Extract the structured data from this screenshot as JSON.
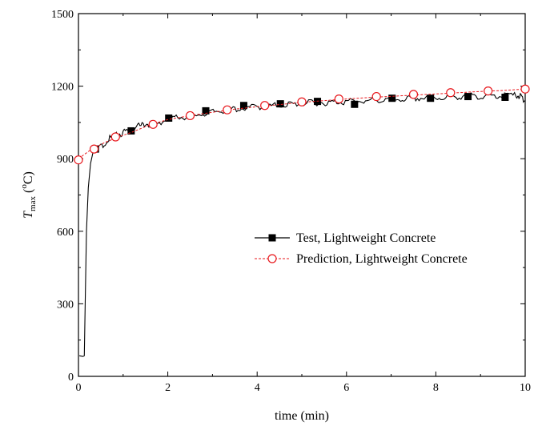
{
  "chart_data": {
    "type": "line",
    "title": "",
    "xlabel": "time (min)",
    "ylabel": {
      "main": "T",
      "subscript": "max",
      "unit_open": " (",
      "unit_sup": "o",
      "unit_close": "C)"
    },
    "xlim": [
      0,
      10
    ],
    "ylim": [
      0,
      1500
    ],
    "xticks": [
      0,
      2,
      4,
      6,
      8,
      10
    ],
    "yticks": [
      0,
      300,
      600,
      900,
      1200,
      1500
    ],
    "grid": false,
    "legend_position": "center-right",
    "series": [
      {
        "name": "Test, Lightweight Concrete",
        "color": "#000000",
        "line_style": "solid",
        "marker": "filled-square",
        "curve": [
          [
            0.02,
            85
          ],
          [
            0.1,
            82
          ],
          [
            0.13,
            85
          ],
          [
            0.15,
            300
          ],
          [
            0.18,
            600
          ],
          [
            0.22,
            780
          ],
          [
            0.27,
            880
          ],
          [
            0.33,
            930
          ],
          [
            0.5,
            950
          ],
          [
            0.7,
            985
          ],
          [
            0.9,
            1000
          ],
          [
            1.1,
            1015
          ],
          [
            1.3,
            1030
          ],
          [
            1.5,
            1045
          ],
          [
            1.7,
            1045
          ],
          [
            2.0,
            1062
          ],
          [
            2.3,
            1072
          ],
          [
            2.6,
            1080
          ],
          [
            2.9,
            1090
          ],
          [
            3.2,
            1098
          ],
          [
            3.5,
            1105
          ],
          [
            3.8,
            1112
          ],
          [
            4.1,
            1116
          ],
          [
            4.4,
            1120
          ],
          [
            4.7,
            1125
          ],
          [
            5.0,
            1128
          ],
          [
            5.3,
            1132
          ],
          [
            5.6,
            1133
          ],
          [
            5.9,
            1135
          ],
          [
            6.2,
            1138
          ],
          [
            6.5,
            1140
          ],
          [
            6.8,
            1143
          ],
          [
            7.1,
            1145
          ],
          [
            7.4,
            1148
          ],
          [
            7.7,
            1150
          ],
          [
            8.0,
            1152
          ],
          [
            8.3,
            1155
          ],
          [
            8.6,
            1158
          ],
          [
            8.9,
            1160
          ],
          [
            9.2,
            1160
          ],
          [
            9.5,
            1162
          ],
          [
            9.8,
            1163
          ],
          [
            9.92,
            1155
          ],
          [
            10.0,
            1140
          ]
        ],
        "markers": [
          [
            0.38,
            940
          ],
          [
            1.18,
            1015
          ],
          [
            2.02,
            1068
          ],
          [
            2.85,
            1098
          ],
          [
            3.7,
            1120
          ],
          [
            4.52,
            1127
          ],
          [
            5.35,
            1137
          ],
          [
            6.18,
            1125
          ],
          [
            7.02,
            1150
          ],
          [
            7.88,
            1150
          ],
          [
            8.72,
            1157
          ],
          [
            9.55,
            1154
          ]
        ]
      },
      {
        "name": "Prediction, Lightweight Concrete",
        "color": "#e8191e",
        "line_style": "dashed",
        "marker": "open-circle",
        "curve": [
          [
            0.0,
            900
          ],
          [
            0.3,
            940
          ],
          [
            0.6,
            968
          ],
          [
            0.9,
            990
          ],
          [
            1.2,
            1010
          ],
          [
            1.6,
            1040
          ],
          [
            2.0,
            1062
          ],
          [
            2.5,
            1078
          ],
          [
            3.0,
            1092
          ],
          [
            3.5,
            1105
          ],
          [
            4.0,
            1115
          ],
          [
            4.5,
            1124
          ],
          [
            5.0,
            1133
          ],
          [
            5.5,
            1140
          ],
          [
            6.0,
            1147
          ],
          [
            6.5,
            1153
          ],
          [
            7.0,
            1158
          ],
          [
            7.5,
            1163
          ],
          [
            8.0,
            1168
          ],
          [
            8.5,
            1173
          ],
          [
            9.0,
            1178
          ],
          [
            9.5,
            1182
          ],
          [
            10.0,
            1188
          ]
        ],
        "markers": [
          [
            0.0,
            895
          ],
          [
            0.35,
            940
          ],
          [
            0.83,
            990
          ],
          [
            1.67,
            1042
          ],
          [
            2.5,
            1078
          ],
          [
            3.33,
            1102
          ],
          [
            4.17,
            1120
          ],
          [
            5.0,
            1135
          ],
          [
            5.83,
            1147
          ],
          [
            6.67,
            1157
          ],
          [
            7.5,
            1166
          ],
          [
            8.33,
            1173
          ],
          [
            9.17,
            1180
          ],
          [
            10.0,
            1188
          ]
        ]
      }
    ]
  }
}
